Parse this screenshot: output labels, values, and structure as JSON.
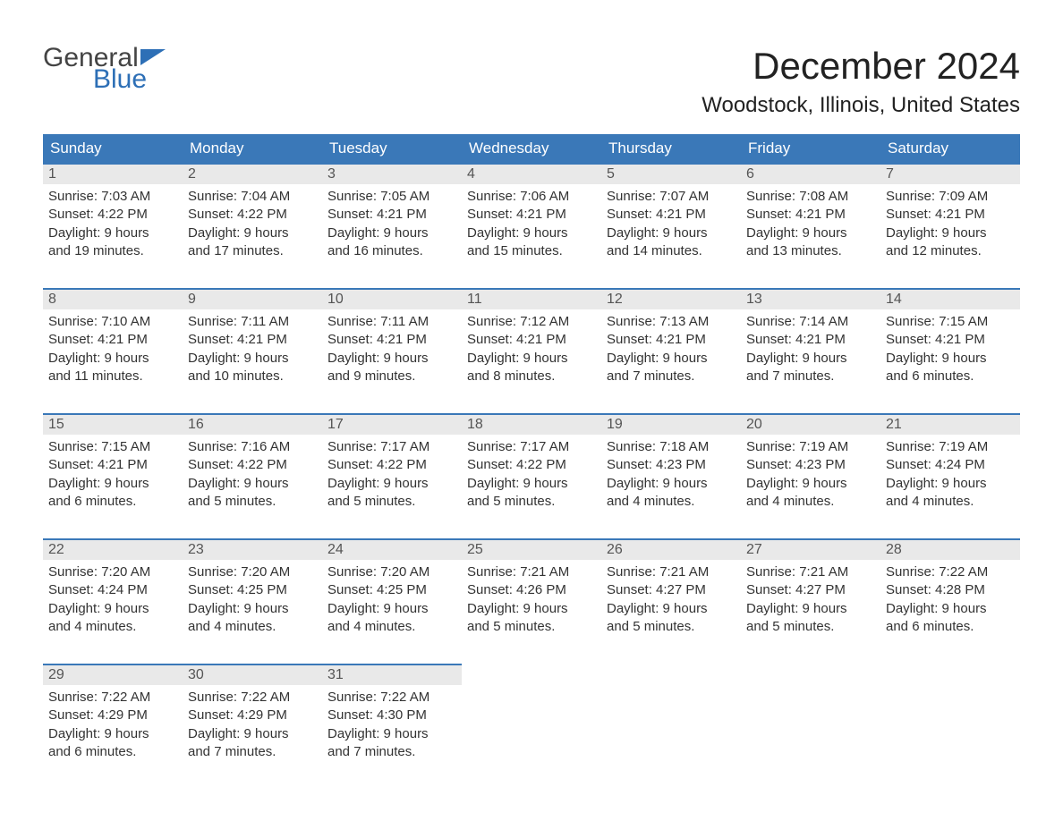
{
  "brand": {
    "word1": "General",
    "word2": "Blue",
    "text_color": "#444444",
    "accent_color": "#2d6fb6"
  },
  "title": "December 2024",
  "location": "Woodstock, Illinois, United States",
  "colors": {
    "header_bg": "#3a78b8",
    "header_text": "#ffffff",
    "daynum_bg": "#e9e9e9",
    "daynum_border": "#3a78b8",
    "body_text": "#333333",
    "background": "#ffffff"
  },
  "dayHeaders": [
    "Sunday",
    "Monday",
    "Tuesday",
    "Wednesday",
    "Thursday",
    "Friday",
    "Saturday"
  ],
  "weeks": [
    [
      {
        "n": "1",
        "sr": "Sunrise: 7:03 AM",
        "ss": "Sunset: 4:22 PM",
        "d1": "Daylight: 9 hours",
        "d2": "and 19 minutes."
      },
      {
        "n": "2",
        "sr": "Sunrise: 7:04 AM",
        "ss": "Sunset: 4:22 PM",
        "d1": "Daylight: 9 hours",
        "d2": "and 17 minutes."
      },
      {
        "n": "3",
        "sr": "Sunrise: 7:05 AM",
        "ss": "Sunset: 4:21 PM",
        "d1": "Daylight: 9 hours",
        "d2": "and 16 minutes."
      },
      {
        "n": "4",
        "sr": "Sunrise: 7:06 AM",
        "ss": "Sunset: 4:21 PM",
        "d1": "Daylight: 9 hours",
        "d2": "and 15 minutes."
      },
      {
        "n": "5",
        "sr": "Sunrise: 7:07 AM",
        "ss": "Sunset: 4:21 PM",
        "d1": "Daylight: 9 hours",
        "d2": "and 14 minutes."
      },
      {
        "n": "6",
        "sr": "Sunrise: 7:08 AM",
        "ss": "Sunset: 4:21 PM",
        "d1": "Daylight: 9 hours",
        "d2": "and 13 minutes."
      },
      {
        "n": "7",
        "sr": "Sunrise: 7:09 AM",
        "ss": "Sunset: 4:21 PM",
        "d1": "Daylight: 9 hours",
        "d2": "and 12 minutes."
      }
    ],
    [
      {
        "n": "8",
        "sr": "Sunrise: 7:10 AM",
        "ss": "Sunset: 4:21 PM",
        "d1": "Daylight: 9 hours",
        "d2": "and 11 minutes."
      },
      {
        "n": "9",
        "sr": "Sunrise: 7:11 AM",
        "ss": "Sunset: 4:21 PM",
        "d1": "Daylight: 9 hours",
        "d2": "and 10 minutes."
      },
      {
        "n": "10",
        "sr": "Sunrise: 7:11 AM",
        "ss": "Sunset: 4:21 PM",
        "d1": "Daylight: 9 hours",
        "d2": "and 9 minutes."
      },
      {
        "n": "11",
        "sr": "Sunrise: 7:12 AM",
        "ss": "Sunset: 4:21 PM",
        "d1": "Daylight: 9 hours",
        "d2": "and 8 minutes."
      },
      {
        "n": "12",
        "sr": "Sunrise: 7:13 AM",
        "ss": "Sunset: 4:21 PM",
        "d1": "Daylight: 9 hours",
        "d2": "and 7 minutes."
      },
      {
        "n": "13",
        "sr": "Sunrise: 7:14 AM",
        "ss": "Sunset: 4:21 PM",
        "d1": "Daylight: 9 hours",
        "d2": "and 7 minutes."
      },
      {
        "n": "14",
        "sr": "Sunrise: 7:15 AM",
        "ss": "Sunset: 4:21 PM",
        "d1": "Daylight: 9 hours",
        "d2": "and 6 minutes."
      }
    ],
    [
      {
        "n": "15",
        "sr": "Sunrise: 7:15 AM",
        "ss": "Sunset: 4:21 PM",
        "d1": "Daylight: 9 hours",
        "d2": "and 6 minutes."
      },
      {
        "n": "16",
        "sr": "Sunrise: 7:16 AM",
        "ss": "Sunset: 4:22 PM",
        "d1": "Daylight: 9 hours",
        "d2": "and 5 minutes."
      },
      {
        "n": "17",
        "sr": "Sunrise: 7:17 AM",
        "ss": "Sunset: 4:22 PM",
        "d1": "Daylight: 9 hours",
        "d2": "and 5 minutes."
      },
      {
        "n": "18",
        "sr": "Sunrise: 7:17 AM",
        "ss": "Sunset: 4:22 PM",
        "d1": "Daylight: 9 hours",
        "d2": "and 5 minutes."
      },
      {
        "n": "19",
        "sr": "Sunrise: 7:18 AM",
        "ss": "Sunset: 4:23 PM",
        "d1": "Daylight: 9 hours",
        "d2": "and 4 minutes."
      },
      {
        "n": "20",
        "sr": "Sunrise: 7:19 AM",
        "ss": "Sunset: 4:23 PM",
        "d1": "Daylight: 9 hours",
        "d2": "and 4 minutes."
      },
      {
        "n": "21",
        "sr": "Sunrise: 7:19 AM",
        "ss": "Sunset: 4:24 PM",
        "d1": "Daylight: 9 hours",
        "d2": "and 4 minutes."
      }
    ],
    [
      {
        "n": "22",
        "sr": "Sunrise: 7:20 AM",
        "ss": "Sunset: 4:24 PM",
        "d1": "Daylight: 9 hours",
        "d2": "and 4 minutes."
      },
      {
        "n": "23",
        "sr": "Sunrise: 7:20 AM",
        "ss": "Sunset: 4:25 PM",
        "d1": "Daylight: 9 hours",
        "d2": "and 4 minutes."
      },
      {
        "n": "24",
        "sr": "Sunrise: 7:20 AM",
        "ss": "Sunset: 4:25 PM",
        "d1": "Daylight: 9 hours",
        "d2": "and 4 minutes."
      },
      {
        "n": "25",
        "sr": "Sunrise: 7:21 AM",
        "ss": "Sunset: 4:26 PM",
        "d1": "Daylight: 9 hours",
        "d2": "and 5 minutes."
      },
      {
        "n": "26",
        "sr": "Sunrise: 7:21 AM",
        "ss": "Sunset: 4:27 PM",
        "d1": "Daylight: 9 hours",
        "d2": "and 5 minutes."
      },
      {
        "n": "27",
        "sr": "Sunrise: 7:21 AM",
        "ss": "Sunset: 4:27 PM",
        "d1": "Daylight: 9 hours",
        "d2": "and 5 minutes."
      },
      {
        "n": "28",
        "sr": "Sunrise: 7:22 AM",
        "ss": "Sunset: 4:28 PM",
        "d1": "Daylight: 9 hours",
        "d2": "and 6 minutes."
      }
    ],
    [
      {
        "n": "29",
        "sr": "Sunrise: 7:22 AM",
        "ss": "Sunset: 4:29 PM",
        "d1": "Daylight: 9 hours",
        "d2": "and 6 minutes."
      },
      {
        "n": "30",
        "sr": "Sunrise: 7:22 AM",
        "ss": "Sunset: 4:29 PM",
        "d1": "Daylight: 9 hours",
        "d2": "and 7 minutes."
      },
      {
        "n": "31",
        "sr": "Sunrise: 7:22 AM",
        "ss": "Sunset: 4:30 PM",
        "d1": "Daylight: 9 hours",
        "d2": "and 7 minutes."
      },
      null,
      null,
      null,
      null
    ]
  ]
}
